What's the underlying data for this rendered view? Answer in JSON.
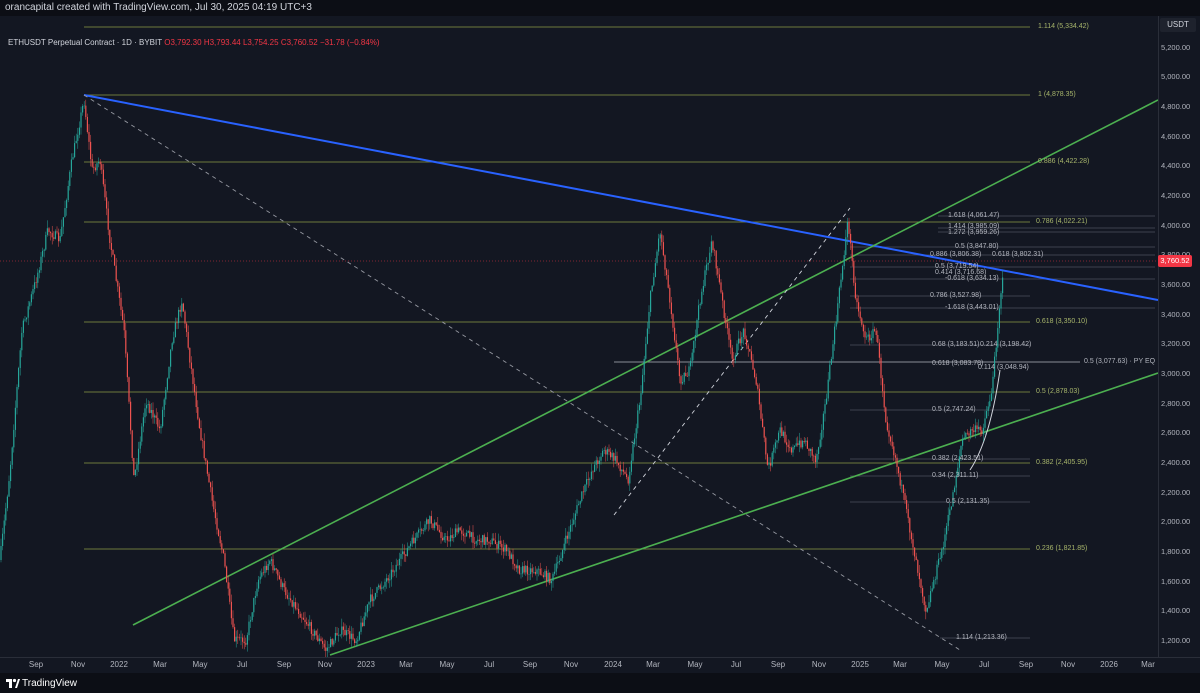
{
  "header": {
    "credit": "orancapital created with TradingView.com, Jul 30, 2025 04:19 UTC+3"
  },
  "legend": {
    "symbol": "ETHUSDT Perpetual Contract · 1D · BYBIT",
    "o": "O3,792.30",
    "h": "H3,793.44",
    "l": "L3,754.25",
    "c": "C3,760.52",
    "change": "−31.78 (−0.84%)"
  },
  "price_axis": {
    "currency": "USDT",
    "ticks": [
      "5,200.00",
      "5,000.00",
      "4,800.00",
      "4,600.00",
      "4,400.00",
      "4,200.00",
      "4,000.00",
      "3,800.00",
      "3,600.00",
      "3,400.00",
      "3,200.00",
      "3,000.00",
      "2,800.00",
      "2,600.00",
      "2,400.00",
      "2,200.00",
      "2,000.00",
      "1,800.00",
      "1,600.00",
      "1,400.00",
      "1,200.00"
    ],
    "last_price": "3,760.52"
  },
  "time_axis": {
    "ticks": [
      "Sep",
      "Nov",
      "2022",
      "Mar",
      "May",
      "Jul",
      "Sep",
      "Nov",
      "2023",
      "Mar",
      "May",
      "Jul",
      "Sep",
      "Nov",
      "2024",
      "Mar",
      "May",
      "Jul",
      "Sep",
      "Nov",
      "2025",
      "Mar",
      "May",
      "Jul",
      "Sep",
      "Nov",
      "2026",
      "Mar"
    ]
  },
  "fib_levels": [
    {
      "label": "1.114 (5,334.42)"
    },
    {
      "label": "1 (4,878.35)"
    },
    {
      "label": "0.886 (4,422.28)"
    },
    {
      "label": "0.786 (4,022.21)"
    },
    {
      "label": "0.618 (3,350.10)"
    },
    {
      "label": "0.5 (3,077.63) · PY EQ"
    },
    {
      "label": "0.5 (2,878.03)"
    },
    {
      "label": "0.382 (2,405.95)"
    },
    {
      "label": "0.236 (1,821.85)"
    },
    {
      "label": "1.114 (1,213.36)"
    }
  ],
  "inner_fib_levels": [
    {
      "label": "1.618 (4,061.47)"
    },
    {
      "label": "1.414 (3,985.09)"
    },
    {
      "label": "1.272 (3,959.26)"
    },
    {
      "label": "0.5 (3,847.80)"
    },
    {
      "label": "0.886 (3,806.38)"
    },
    {
      "label": "0.618 (3,802.31)"
    },
    {
      "label": "0.5 (3,719.54)"
    },
    {
      "label": "0.414 (3,716.68)"
    },
    {
      "label": "-0.618 (3,634.13)"
    },
    {
      "label": "0.786 (3,527.98)"
    },
    {
      "label": "-1.618 (3,443.01)"
    },
    {
      "label": "0.68 (3,183.51)"
    },
    {
      "label": "0.214 (3,198.42)"
    },
    {
      "label": "0.618 (3,083.78)"
    },
    {
      "label": "0.114 (3,048.94)"
    },
    {
      "label": "0.5 (2,747.24)"
    },
    {
      "label": "0.382 (2,423.51)"
    },
    {
      "label": "0.34 (2,311.11)"
    },
    {
      "label": "0.5 (2,131.35)"
    }
  ],
  "footer": {
    "brand": "TradingView"
  },
  "colors": {
    "background": "#131722",
    "up": "#26a69a",
    "down": "#ef5350",
    "fib_line": "#8b9a46",
    "trend_blue": "#2962ff",
    "trend_green": "#4caf50",
    "badge": "#f23645"
  }
}
